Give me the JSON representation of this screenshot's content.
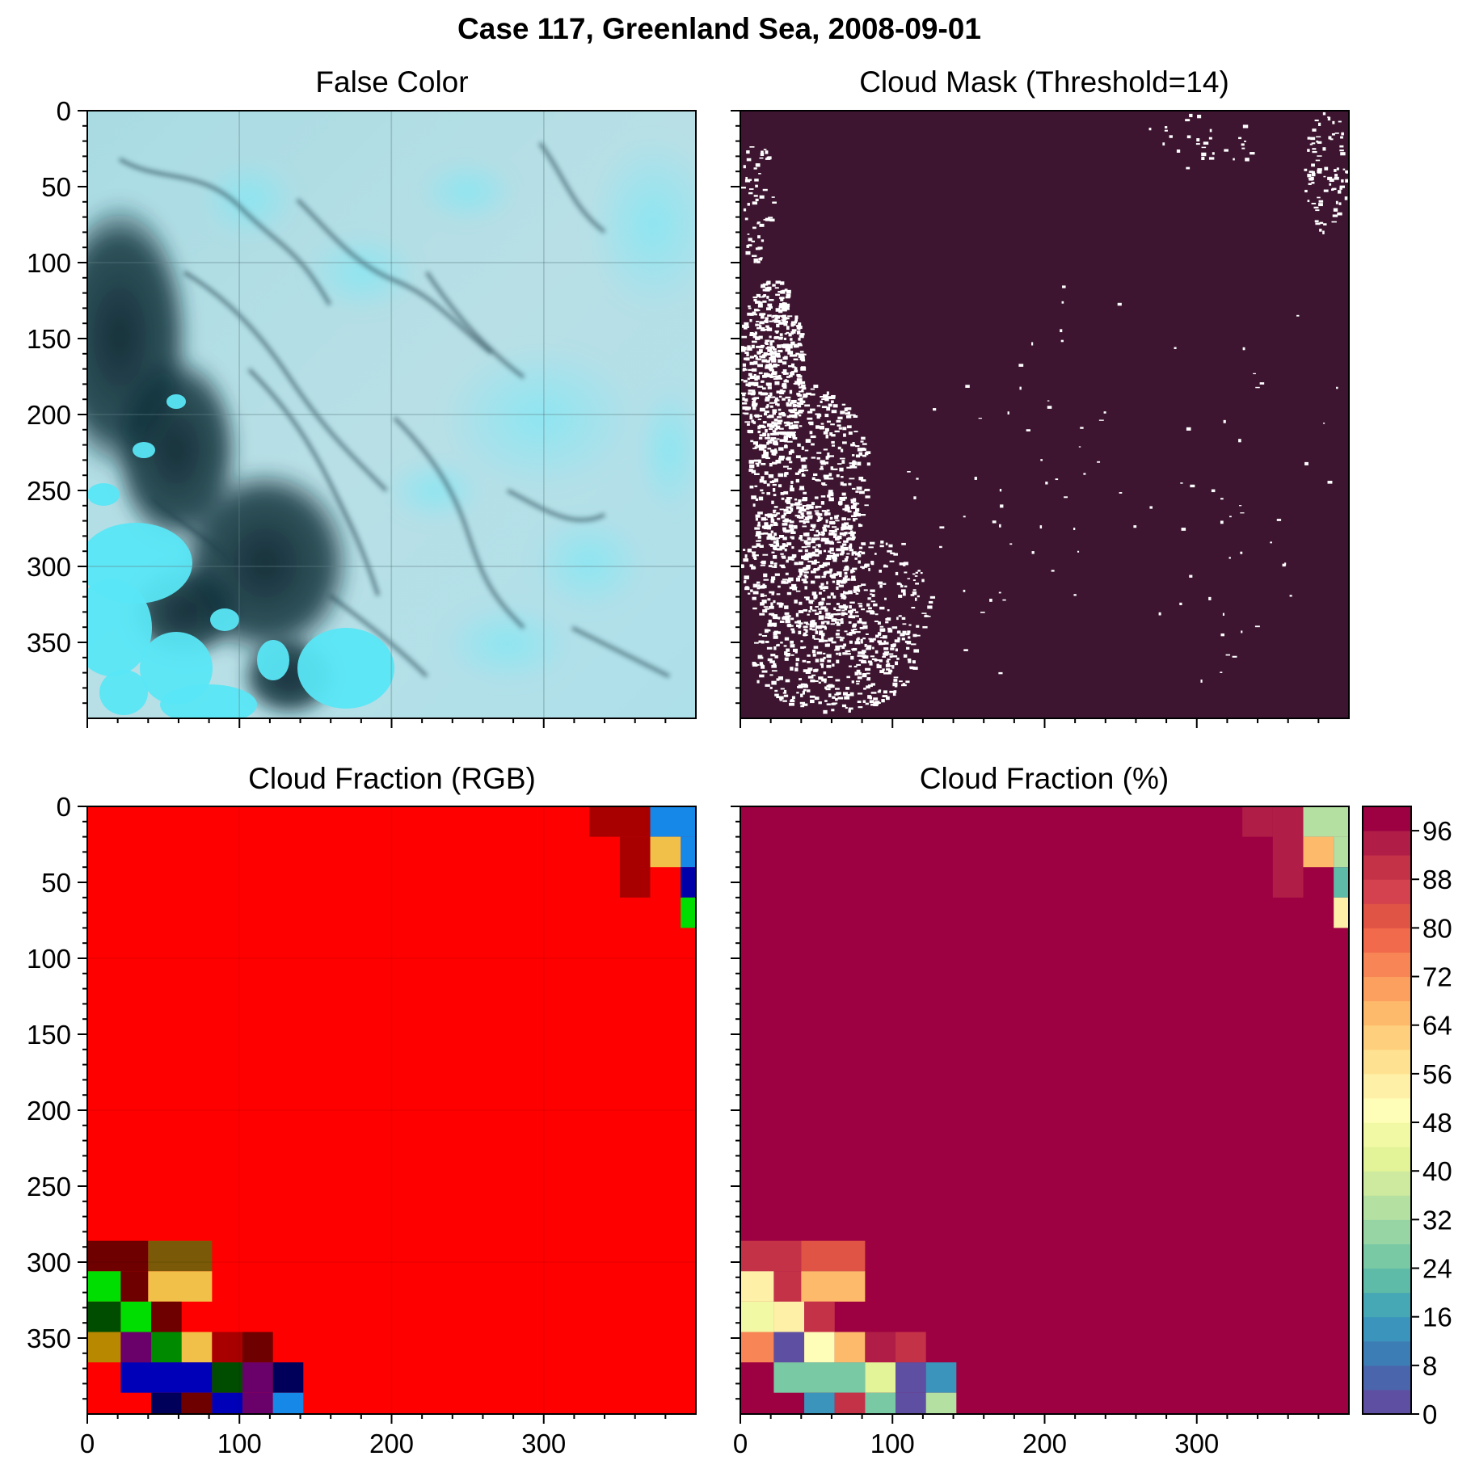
{
  "figure": {
    "title": "Case 117, Greenland Sea, 2008-09-01"
  },
  "chart_data": [
    {
      "type": "heatmap",
      "title": "False Color",
      "image": "false-color satellite composite (cyan cloud field, dark open water lower-left)",
      "xlim": [
        0,
        400
      ],
      "ylim": [
        400,
        0
      ],
      "xticks": [
        0,
        100,
        200,
        300
      ],
      "yticks": [
        0,
        50,
        100,
        150,
        200,
        250,
        300,
        350
      ],
      "show_xticklabels": false,
      "show_yticklabels": true,
      "grid": true
    },
    {
      "type": "heatmap",
      "title": "Cloud Mask (Threshold=14)",
      "colors": {
        "cloud": "#3d1530",
        "clear": "#ffffff"
      },
      "xlim": [
        0,
        400
      ],
      "ylim": [
        400,
        0
      ],
      "xticks": [
        0,
        100,
        200,
        300
      ],
      "yticks": [
        0,
        50,
        100,
        150,
        200,
        250,
        300,
        350
      ],
      "show_xticklabels": false,
      "show_yticklabels": false,
      "grid": false
    },
    {
      "type": "heatmap",
      "title": "Cloud Fraction (RGB)",
      "xlim": [
        0,
        400
      ],
      "ylim": [
        400,
        0
      ],
      "xticks": [
        0,
        100,
        200,
        300
      ],
      "yticks": [
        0,
        50,
        100,
        150,
        200,
        250,
        300,
        350
      ],
      "show_xticklabels": true,
      "show_yticklabels": true,
      "grid": true,
      "background": "#ff0000",
      "cells": [
        {
          "x": [
            330,
            370
          ],
          "y": [
            0,
            20
          ],
          "color": "#a80000"
        },
        {
          "x": [
            350,
            370
          ],
          "y": [
            20,
            60
          ],
          "color": "#a80000"
        },
        {
          "x": [
            370,
            400
          ],
          "y": [
            0,
            20
          ],
          "color": "#1588e8"
        },
        {
          "x": [
            390,
            400
          ],
          "y": [
            20,
            40
          ],
          "color": "#1588e8"
        },
        {
          "x": [
            370,
            390
          ],
          "y": [
            20,
            40
          ],
          "color": "#f0c048"
        },
        {
          "x": [
            390,
            400
          ],
          "y": [
            40,
            60
          ],
          "color": "#0000a8"
        },
        {
          "x": [
            390,
            400
          ],
          "y": [
            60,
            80
          ],
          "color": "#00dd00"
        },
        {
          "x": [
            0,
            40
          ],
          "y": [
            286,
            306
          ],
          "color": "#6e0000"
        },
        {
          "x": [
            40,
            82
          ],
          "y": [
            286,
            306
          ],
          "color": "#7a5a08"
        },
        {
          "x": [
            0,
            22
          ],
          "y": [
            306,
            326
          ],
          "color": "#00dd00"
        },
        {
          "x": [
            22,
            40
          ],
          "y": [
            306,
            326
          ],
          "color": "#6e0000"
        },
        {
          "x": [
            40,
            82
          ],
          "y": [
            306,
            326
          ],
          "color": "#f0c048"
        },
        {
          "x": [
            0,
            22
          ],
          "y": [
            326,
            346
          ],
          "color": "#004d00"
        },
        {
          "x": [
            22,
            42
          ],
          "y": [
            326,
            346
          ],
          "color": "#00dd00"
        },
        {
          "x": [
            42,
            62
          ],
          "y": [
            326,
            346
          ],
          "color": "#6e0000"
        },
        {
          "x": [
            0,
            22
          ],
          "y": [
            346,
            366
          ],
          "color": "#b88800"
        },
        {
          "x": [
            22,
            42
          ],
          "y": [
            346,
            366
          ],
          "color": "#6a006a"
        },
        {
          "x": [
            42,
            62
          ],
          "y": [
            346,
            366
          ],
          "color": "#008a00"
        },
        {
          "x": [
            62,
            82
          ],
          "y": [
            346,
            366
          ],
          "color": "#f0c048"
        },
        {
          "x": [
            82,
            102
          ],
          "y": [
            346,
            366
          ],
          "color": "#a80000"
        },
        {
          "x": [
            102,
            122
          ],
          "y": [
            346,
            366
          ],
          "color": "#6e0000"
        },
        {
          "x": [
            22,
            82
          ],
          "y": [
            366,
            386
          ],
          "color": "#0000b8"
        },
        {
          "x": [
            82,
            102
          ],
          "y": [
            366,
            386
          ],
          "color": "#004d00"
        },
        {
          "x": [
            102,
            122
          ],
          "y": [
            366,
            386
          ],
          "color": "#6a006a"
        },
        {
          "x": [
            122,
            142
          ],
          "y": [
            366,
            386
          ],
          "color": "#00005a"
        },
        {
          "x": [
            42,
            62
          ],
          "y": [
            386,
            400
          ],
          "color": "#00005a"
        },
        {
          "x": [
            62,
            82
          ],
          "y": [
            386,
            400
          ],
          "color": "#6e0000"
        },
        {
          "x": [
            82,
            102
          ],
          "y": [
            386,
            400
          ],
          "color": "#0000b8"
        },
        {
          "x": [
            102,
            122
          ],
          "y": [
            386,
            400
          ],
          "color": "#6a006a"
        },
        {
          "x": [
            122,
            142
          ],
          "y": [
            386,
            400
          ],
          "color": "#1588e8"
        }
      ]
    },
    {
      "type": "heatmap",
      "title": "Cloud Fraction (%)",
      "xlim": [
        0,
        400
      ],
      "ylim": [
        400,
        0
      ],
      "xticks": [
        0,
        100,
        200,
        300
      ],
      "yticks": [
        0,
        50,
        100,
        150,
        200,
        250,
        300,
        350
      ],
      "show_xticklabels": true,
      "show_yticklabels": false,
      "grid": false,
      "background_value": 100,
      "cells": [
        {
          "x": [
            330,
            350
          ],
          "y": [
            0,
            20
          ],
          "value": 92
        },
        {
          "x": [
            350,
            370
          ],
          "y": [
            0,
            60
          ],
          "value": 92
        },
        {
          "x": [
            370,
            400
          ],
          "y": [
            0,
            20
          ],
          "value": 34
        },
        {
          "x": [
            370,
            390
          ],
          "y": [
            20,
            40
          ],
          "value": 64
        },
        {
          "x": [
            390,
            400
          ],
          "y": [
            20,
            40
          ],
          "value": 34
        },
        {
          "x": [
            390,
            400
          ],
          "y": [
            40,
            60
          ],
          "value": 22
        },
        {
          "x": [
            390,
            400
          ],
          "y": [
            60,
            80
          ],
          "value": 54
        },
        {
          "x": [
            0,
            40
          ],
          "y": [
            286,
            306
          ],
          "value": 90
        },
        {
          "x": [
            40,
            82
          ],
          "y": [
            286,
            306
          ],
          "value": 80
        },
        {
          "x": [
            0,
            22
          ],
          "y": [
            306,
            326
          ],
          "value": 54
        },
        {
          "x": [
            22,
            40
          ],
          "y": [
            306,
            326
          ],
          "value": 90
        },
        {
          "x": [
            40,
            82
          ],
          "y": [
            306,
            326
          ],
          "value": 64
        },
        {
          "x": [
            0,
            22
          ],
          "y": [
            326,
            346
          ],
          "value": 46
        },
        {
          "x": [
            22,
            42
          ],
          "y": [
            326,
            346
          ],
          "value": 54
        },
        {
          "x": [
            42,
            62
          ],
          "y": [
            326,
            346
          ],
          "value": 90
        },
        {
          "x": [
            0,
            22
          ],
          "y": [
            346,
            366
          ],
          "value": 72
        },
        {
          "x": [
            22,
            42
          ],
          "y": [
            346,
            366
          ],
          "value": 2
        },
        {
          "x": [
            42,
            62
          ],
          "y": [
            346,
            366
          ],
          "value": 48
        },
        {
          "x": [
            62,
            82
          ],
          "y": [
            346,
            366
          ],
          "value": 64
        },
        {
          "x": [
            82,
            102
          ],
          "y": [
            346,
            366
          ],
          "value": 92
        },
        {
          "x": [
            102,
            122
          ],
          "y": [
            346,
            366
          ],
          "value": 90
        },
        {
          "x": [
            22,
            82
          ],
          "y": [
            366,
            386
          ],
          "value": 26
        },
        {
          "x": [
            82,
            102
          ],
          "y": [
            366,
            386
          ],
          "value": 42
        },
        {
          "x": [
            102,
            122
          ],
          "y": [
            366,
            386
          ],
          "value": 2
        },
        {
          "x": [
            122,
            142
          ],
          "y": [
            366,
            386
          ],
          "value": 14
        },
        {
          "x": [
            42,
            62
          ],
          "y": [
            386,
            400
          ],
          "value": 14
        },
        {
          "x": [
            62,
            82
          ],
          "y": [
            386,
            400
          ],
          "value": 90
        },
        {
          "x": [
            82,
            102
          ],
          "y": [
            386,
            400
          ],
          "value": 26
        },
        {
          "x": [
            102,
            122
          ],
          "y": [
            386,
            400
          ],
          "value": 2
        },
        {
          "x": [
            122,
            142
          ],
          "y": [
            386,
            400
          ],
          "value": 34
        }
      ],
      "colorbar": {
        "range": [
          0,
          100
        ],
        "step": 4,
        "tick_labels": [
          "0",
          "8",
          "16",
          "24",
          "32",
          "40",
          "48",
          "56",
          "64",
          "72",
          "80",
          "88",
          "96"
        ],
        "colors": [
          "#5e4fa2",
          "#4a65ac",
          "#3d7db6",
          "#3a94bb",
          "#47a8b5",
          "#5dbba7",
          "#7ac9a5",
          "#98d5a4",
          "#b4e0a2",
          "#cdea9e",
          "#e3f397",
          "#f2f9a4",
          "#fefeb9",
          "#fef0a7",
          "#fee291",
          "#fecf7c",
          "#fdba6b",
          "#fca05f",
          "#f88555",
          "#f06a4b",
          "#e05446",
          "#d3424e",
          "#c43248",
          "#b01e47",
          "#9e0142"
        ]
      }
    }
  ]
}
